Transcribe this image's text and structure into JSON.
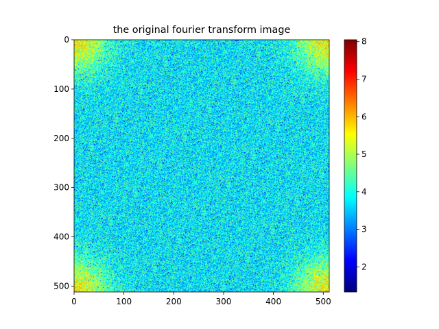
{
  "chart_data": {
    "type": "heatmap",
    "title": "the original fourier transform image",
    "xlabel": "",
    "ylabel": "",
    "colormap": "jet",
    "image_width": 512,
    "image_height": 512,
    "xlim": [
      0,
      512
    ],
    "ylim": [
      512,
      0
    ],
    "x_ticks": [
      0,
      100,
      200,
      300,
      400,
      500
    ],
    "y_ticks": [
      0,
      100,
      200,
      300,
      400,
      500
    ],
    "x_tick_labels": [
      "0",
      "100",
      "200",
      "300",
      "400",
      "500"
    ],
    "y_tick_labels": [
      "0",
      "100",
      "200",
      "300",
      "400",
      "500"
    ],
    "colorbar": {
      "min": 1.33,
      "max": 8.05,
      "ticks": [
        2,
        3,
        4,
        5,
        6,
        7,
        8
      ],
      "tick_labels": [
        "2",
        "3",
        "4",
        "5",
        "6",
        "7",
        "8"
      ]
    },
    "background_level": 3.8,
    "noise_spread": 0.9,
    "corner_peak_level": 5.6,
    "corner_peak_extent": 45
  }
}
